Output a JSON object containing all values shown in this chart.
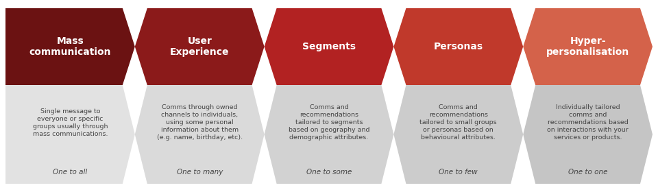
{
  "background_color": "#ffffff",
  "arrow_colors": [
    "#6b1212",
    "#8b1a1a",
    "#b22222",
    "#c0392b",
    "#d4624a"
  ],
  "bot_colors": [
    "#e2e2e2",
    "#dadada",
    "#d2d2d2",
    "#cccccc",
    "#c5c5c5"
  ],
  "titles": [
    "Mass\ncommunication",
    "User\nExperience",
    "Segments",
    "Personas",
    "Hyper-\npersonalisation"
  ],
  "descriptions": [
    "Single message to\neveryone or specific\ngroups usually through\nmass communications.",
    "Comms through owned\nchannels to individuals,\nusing some personal\ninformation about them\n(e.g. name, birthday, etc).",
    "Comms and\nrecommendations\ntailored to segments\nbased on geography and\ndemographic attributes.",
    "Comms and\nrecommendations\ntailored to small groups\nor personas based on\nbehavioural attributes.",
    "Individually tailored\ncomms and\nrecommendations based\non interactions with your\nservices or products."
  ],
  "subtitles": [
    "One to all",
    "One to many",
    "One to some",
    "One to few",
    "One to one"
  ],
  "n": 5,
  "fig_width": 9.6,
  "fig_height": 2.8
}
